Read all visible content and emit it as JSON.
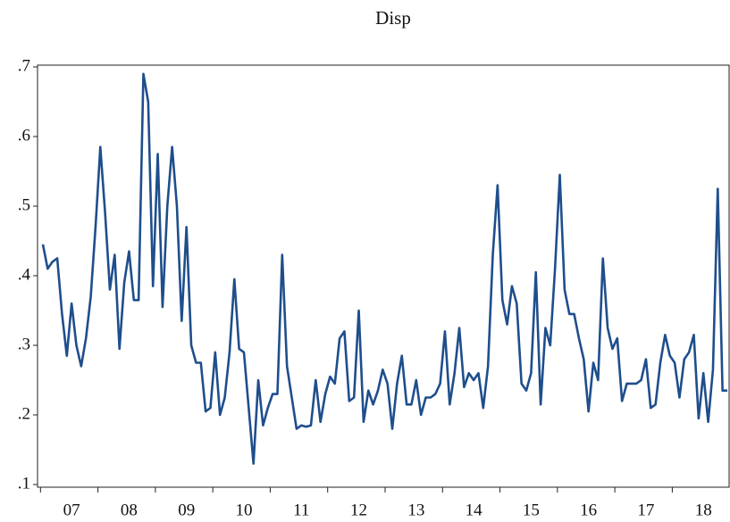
{
  "chart_data": {
    "type": "line",
    "title": "Disp",
    "categories": [
      null,
      null,
      null,
      null,
      null,
      null,
      "07",
      null,
      null,
      null,
      null,
      null,
      null,
      null,
      null,
      null,
      null,
      null,
      "08",
      null,
      null,
      null,
      null,
      null,
      null,
      null,
      null,
      null,
      null,
      null,
      "09",
      null,
      null,
      null,
      null,
      null,
      null,
      null,
      null,
      null,
      null,
      null,
      "10",
      null,
      null,
      null,
      null,
      null,
      null,
      null,
      null,
      null,
      null,
      null,
      "11",
      null,
      null,
      null,
      null,
      null,
      null,
      null,
      null,
      null,
      null,
      null,
      "12",
      null,
      null,
      null,
      null,
      null,
      null,
      null,
      null,
      null,
      null,
      null,
      "13",
      null,
      null,
      null,
      null,
      null,
      null,
      null,
      null,
      null,
      null,
      null,
      "14",
      null,
      null,
      null,
      null,
      null,
      null,
      null,
      null,
      null,
      null,
      null,
      "15",
      null,
      null,
      null,
      null,
      null,
      null,
      null,
      null,
      null,
      null,
      null,
      "16",
      null,
      null,
      null,
      null,
      null,
      null,
      null,
      null,
      null,
      null,
      null,
      "17",
      null,
      null,
      null,
      null,
      null,
      null,
      null,
      null,
      null,
      null,
      null,
      "18",
      null,
      null,
      null,
      null,
      null
    ],
    "series": [
      {
        "name": "Disp",
        "color": "#1f4e8c",
        "values": [
          0.445,
          0.41,
          0.42,
          0.425,
          0.345,
          0.285,
          0.36,
          0.3,
          0.27,
          0.31,
          0.37,
          0.47,
          0.585,
          0.49,
          0.38,
          0.43,
          0.295,
          0.39,
          0.435,
          0.365,
          0.365,
          0.69,
          0.65,
          0.385,
          0.575,
          0.355,
          0.5,
          0.585,
          0.5,
          0.335,
          0.47,
          0.3,
          0.275,
          0.275,
          0.205,
          0.21,
          0.29,
          0.2,
          0.225,
          0.29,
          0.395,
          0.295,
          0.29,
          0.21,
          0.13,
          0.25,
          0.185,
          0.21,
          0.23,
          0.23,
          0.43,
          0.27,
          0.225,
          0.18,
          0.185,
          0.183,
          0.185,
          0.25,
          0.19,
          0.23,
          0.255,
          0.245,
          0.31,
          0.32,
          0.22,
          0.225,
          0.35,
          0.19,
          0.235,
          0.215,
          0.235,
          0.265,
          0.245,
          0.18,
          0.245,
          0.285,
          0.215,
          0.215,
          0.25,
          0.2,
          0.225,
          0.225,
          0.23,
          0.245,
          0.32,
          0.215,
          0.26,
          0.325,
          0.24,
          0.26,
          0.25,
          0.26,
          0.21,
          0.27,
          0.43,
          0.53,
          0.365,
          0.33,
          0.385,
          0.36,
          0.245,
          0.235,
          0.26,
          0.405,
          0.215,
          0.325,
          0.3,
          0.41,
          0.545,
          0.38,
          0.345,
          0.345,
          0.31,
          0.28,
          0.205,
          0.275,
          0.25,
          0.425,
          0.325,
          0.295,
          0.31,
          0.22,
          0.245,
          0.245,
          0.245,
          0.25,
          0.28,
          0.21,
          0.215,
          0.275,
          0.315,
          0.285,
          0.275,
          0.225,
          0.28,
          0.29,
          0.315,
          0.195,
          0.26,
          0.19,
          0.265,
          0.525,
          0.235,
          0.235
        ]
      }
    ],
    "ylim": [
      0.1,
      0.7
    ],
    "yticks": [
      {
        "value": 0.1,
        "label": ".1"
      },
      {
        "value": 0.2,
        "label": ".2"
      },
      {
        "value": 0.3,
        "label": ".3"
      },
      {
        "value": 0.4,
        "label": ".4"
      },
      {
        "value": 0.5,
        "label": ".5"
      },
      {
        "value": 0.6,
        "label": ".6"
      },
      {
        "value": 0.7,
        "label": ".7"
      }
    ]
  }
}
